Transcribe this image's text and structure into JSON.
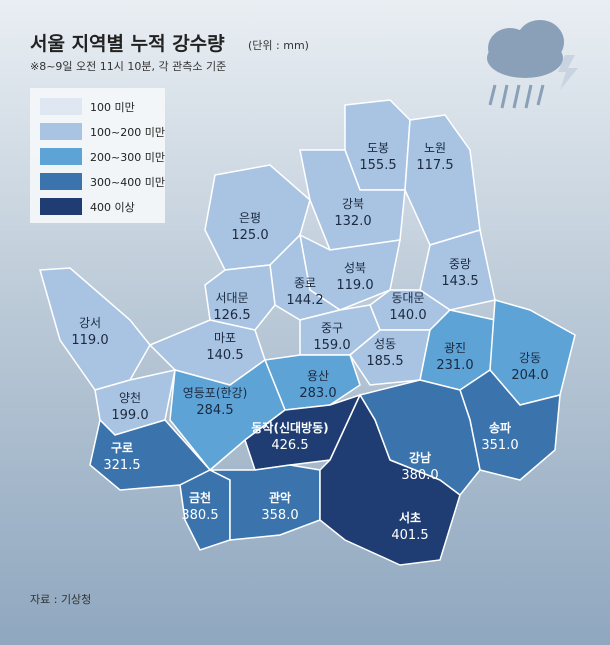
{
  "header": {
    "title": "서울 지역별 누적 강수량",
    "unit": "(단위 : mm)",
    "subtitle": "※8~9일 오전 11시 10분, 각 관측소 기준"
  },
  "legend": [
    {
      "label": "100 미만",
      "color": "#dfe7f2"
    },
    {
      "label": "100~200 미만",
      "color": "#a9c4e2"
    },
    {
      "label": "200~300 미만",
      "color": "#5ea3d6"
    },
    {
      "label": "300~400 미만",
      "color": "#3b74ad"
    },
    {
      "label": "400 이상",
      "color": "#1f3d72"
    }
  ],
  "districts": [
    {
      "name": "도봉",
      "value": "155.5",
      "color": "#a9c4e2"
    },
    {
      "name": "노원",
      "value": "117.5",
      "color": "#a9c4e2"
    },
    {
      "name": "강북",
      "value": "132.0",
      "color": "#a9c4e2"
    },
    {
      "name": "은평",
      "value": "125.0",
      "color": "#a9c4e2"
    },
    {
      "name": "성북",
      "value": "119.0",
      "color": "#a9c4e2"
    },
    {
      "name": "중랑",
      "value": "143.5",
      "color": "#a9c4e2"
    },
    {
      "name": "종로",
      "value": "144.2",
      "color": "#a9c4e2"
    },
    {
      "name": "서대문",
      "value": "126.5",
      "color": "#a9c4e2"
    },
    {
      "name": "동대문",
      "value": "140.0",
      "color": "#a9c4e2"
    },
    {
      "name": "강서",
      "value": "119.0",
      "color": "#a9c4e2"
    },
    {
      "name": "마포",
      "value": "140.5",
      "color": "#a9c4e2"
    },
    {
      "name": "중구",
      "value": "159.0",
      "color": "#a9c4e2"
    },
    {
      "name": "성동",
      "value": "185.5",
      "color": "#a9c4e2"
    },
    {
      "name": "광진",
      "value": "231.0",
      "color": "#5ea3d6"
    },
    {
      "name": "강동",
      "value": "204.0",
      "color": "#5ea3d6"
    },
    {
      "name": "용산",
      "value": "283.0",
      "color": "#5ea3d6"
    },
    {
      "name": "양천",
      "value": "199.0",
      "color": "#a9c4e2"
    },
    {
      "name": "영등포(한강)",
      "value": "284.5",
      "color": "#5ea3d6"
    },
    {
      "name": "동작(신대방동)",
      "value": "426.5",
      "color": "#1f3d72"
    },
    {
      "name": "송파",
      "value": "351.0",
      "color": "#3b74ad"
    },
    {
      "name": "구로",
      "value": "321.5",
      "color": "#3b74ad"
    },
    {
      "name": "강남",
      "value": "380.0",
      "color": "#3b74ad"
    },
    {
      "name": "금천",
      "value": "380.5",
      "color": "#3b74ad"
    },
    {
      "name": "관악",
      "value": "358.0",
      "color": "#3b74ad"
    },
    {
      "name": "서초",
      "value": "401.5",
      "color": "#1f3d72"
    }
  ],
  "source": "자료 : 기상청"
}
